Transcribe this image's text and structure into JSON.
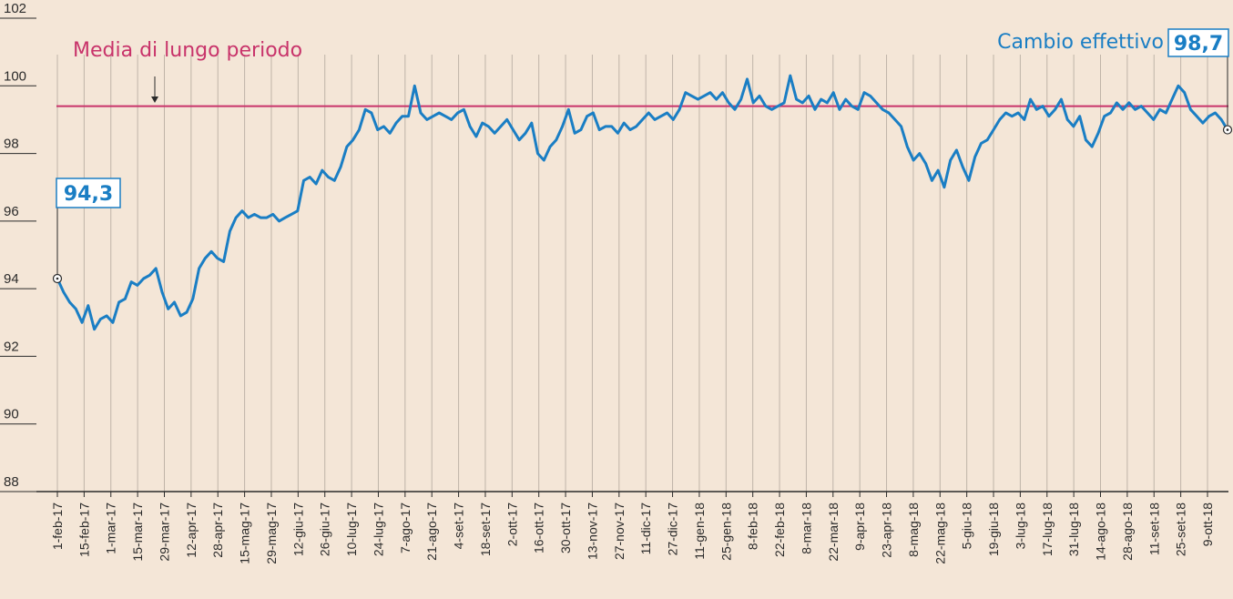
{
  "chart_data": {
    "type": "line",
    "title": "",
    "xlabel": "",
    "ylabel": "",
    "ylim": [
      88,
      102
    ],
    "yticks": [
      88,
      90,
      92,
      94,
      96,
      98,
      100,
      102
    ],
    "grid": "vertical gridlines at x tick labels",
    "xticks": [
      "1-feb-17",
      "15-feb-17",
      "1-mar-17",
      "15-mar-17",
      "29-mar-17",
      "12-apr-17",
      "28-apr-17",
      "15-mag-17",
      "29-mag-17",
      "12-giu-17",
      "26-giu-17",
      "10-lug-17",
      "24-lug-17",
      "7-ago-17",
      "21-ago-17",
      "4-set-17",
      "18-set-17",
      "2-ott-17",
      "16-ott-17",
      "30-ott-17",
      "13-nov-17",
      "27-nov-17",
      "11-dic-17",
      "27-dic-17",
      "11-gen-18",
      "25-gen-18",
      "8-feb-18",
      "22-feb-18",
      "8-mar-18",
      "22-mar-18",
      "9-apr-18",
      "23-apr-18",
      "8-mag-18",
      "22-mag-18",
      "5-giu-18",
      "19-giu-18",
      "3-lug-18",
      "17-lug-18",
      "31-lug-18",
      "14-ago-18",
      "28-ago-18",
      "11-set-18",
      "25-set-18",
      "9-ott-18"
    ],
    "reference_line": {
      "label": "Media di lungo periodo",
      "value": 99.4
    },
    "series": [
      {
        "name": "Cambio effettivo",
        "color": "#1a7ec4",
        "start_label": "94,3",
        "end_label": "98,7",
        "values": [
          94.3,
          93.9,
          93.6,
          93.4,
          93.0,
          93.5,
          92.8,
          93.1,
          93.2,
          93.0,
          93.6,
          93.7,
          94.2,
          94.1,
          94.3,
          94.4,
          94.6,
          93.9,
          93.4,
          93.6,
          93.2,
          93.3,
          93.7,
          94.6,
          94.9,
          95.1,
          94.9,
          94.8,
          95.7,
          96.1,
          96.3,
          96.1,
          96.2,
          96.1,
          96.1,
          96.2,
          96.0,
          96.1,
          96.2,
          96.3,
          97.2,
          97.3,
          97.1,
          97.5,
          97.3,
          97.2,
          97.6,
          98.2,
          98.4,
          98.7,
          99.3,
          99.2,
          98.7,
          98.8,
          98.6,
          98.9,
          99.1,
          99.1,
          100.0,
          99.2,
          99.0,
          99.1,
          99.2,
          99.1,
          99.0,
          99.2,
          99.3,
          98.8,
          98.5,
          98.9,
          98.8,
          98.6,
          98.8,
          99.0,
          98.7,
          98.4,
          98.6,
          98.9,
          98.0,
          97.8,
          98.2,
          98.4,
          98.8,
          99.3,
          98.6,
          98.7,
          99.1,
          99.2,
          98.7,
          98.8,
          98.8,
          98.6,
          98.9,
          98.7,
          98.8,
          99.0,
          99.2,
          99.0,
          99.1,
          99.2,
          99.0,
          99.3,
          99.8,
          99.7,
          99.6,
          99.7,
          99.8,
          99.6,
          99.8,
          99.5,
          99.3,
          99.6,
          100.2,
          99.5,
          99.7,
          99.4,
          99.3,
          99.4,
          99.5,
          100.3,
          99.6,
          99.5,
          99.7,
          99.3,
          99.6,
          99.5,
          99.8,
          99.3,
          99.6,
          99.4,
          99.3,
          99.8,
          99.7,
          99.5,
          99.3,
          99.2,
          99.0,
          98.8,
          98.2,
          97.8,
          98.0,
          97.7,
          97.2,
          97.5,
          97.0,
          97.8,
          98.1,
          97.6,
          97.2,
          97.9,
          98.3,
          98.4,
          98.7,
          99.0,
          99.2,
          99.1,
          99.2,
          99.0,
          99.6,
          99.3,
          99.4,
          99.1,
          99.3,
          99.6,
          99.0,
          98.8,
          99.1,
          98.4,
          98.2,
          98.6,
          99.1,
          99.2,
          99.5,
          99.3,
          99.5,
          99.3,
          99.4,
          99.2,
          99.0,
          99.3,
          99.2,
          99.6,
          100.0,
          99.8,
          99.3,
          99.1,
          98.9,
          99.1,
          99.2,
          99.0,
          98.7
        ]
      }
    ]
  },
  "annotations": {
    "reference_label": "Media di lungo periodo",
    "series_label": "Cambio effettivo",
    "end_value": "98,7",
    "start_value": "94,3"
  },
  "colors": {
    "background": "#f4e6d7",
    "series": "#1a7ec4",
    "reference": "#c8336a",
    "grid": "#bfb4a8",
    "axis": "#2a2a2a"
  }
}
